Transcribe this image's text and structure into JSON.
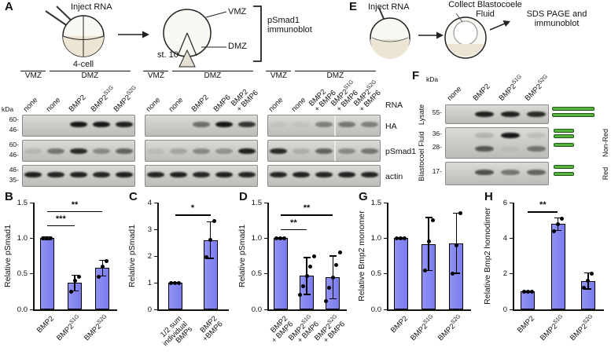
{
  "colors": {
    "bar_fill": "#8184ef",
    "band_color": "#0e0e0e",
    "green_fill": "#56b33c"
  },
  "panelA": {
    "label": "A",
    "inject_label": "Inject RNA",
    "four_cell_label": "4-cell",
    "stage_label": "st. 10",
    "vmz_label": "VMZ",
    "dmz_label": "DMZ",
    "immunoblot_label": "pSmad1\nimmunoblot"
  },
  "blotsA": {
    "kda_label": "kDa",
    "rna_label": "RNA",
    "row_labels": [
      "HA",
      "pSmad1",
      "actin"
    ],
    "markers": [
      [
        "60-",
        "46-"
      ],
      [
        "60-",
        "46-"
      ],
      [
        "46-",
        "35-"
      ]
    ],
    "groups": [
      {
        "vmz": "VMZ",
        "dmz": "DMZ",
        "lanes": [
          "none",
          "none",
          "BMP2",
          "BMP2^S1G",
          "BMP2^S2G"
        ],
        "bands": [
          [
            0,
            0,
            0.95,
            0.95,
            0.9
          ],
          [
            0.1,
            0.45,
            0.85,
            0.35,
            0.55
          ],
          [
            0.9,
            0.88,
            0.9,
            0.88,
            0.9
          ]
        ],
        "splice": false
      },
      {
        "vmz": "VMZ",
        "dmz": "DMZ",
        "lanes": [
          "none",
          "none",
          "BMP2",
          "BMP6",
          "BMP2\n+ BMP6"
        ],
        "bands": [
          [
            0,
            0,
            0.5,
            0.95,
            0.8
          ],
          [
            0.08,
            0.2,
            0.35,
            0.3,
            0.9
          ],
          [
            0.88,
            0.9,
            0.88,
            0.9,
            0.88
          ]
        ],
        "splice": false
      },
      {
        "vmz": "VMZ",
        "dmz": "DMZ",
        "lanes": [
          "none",
          "none",
          "BMP2\n+ BMP6",
          "BMP2^S1G\n+ BMP6",
          "BMP2^S2G\n+ BMP6"
        ],
        "bands": [
          [
            0.05,
            0.05,
            0.4,
            0.45,
            0.4
          ],
          [
            0.85,
            0.15,
            0.55,
            0.35,
            0.45
          ],
          [
            0.88,
            0.9,
            0.88,
            0.9,
            0.88
          ]
        ],
        "splice": true
      }
    ]
  },
  "panelE": {
    "label": "E",
    "inject_label": "Inject RNA",
    "collect_label": "Collect Blastocoele\nFluid",
    "sds_label": "SDS PAGE and\nimmunoblot"
  },
  "panelF": {
    "label": "F",
    "kda_label": "kDa",
    "lanes": [
      "none",
      "BMP2",
      "BMP2^S1G",
      "BMP2^S2G"
    ],
    "left_labels": [
      "Lysate",
      "Blastocoel Fluid"
    ],
    "right_labels": [
      "Non-Red",
      "Red"
    ],
    "rows": [
      {
        "markers": [
          "55-"
        ],
        "bands": [
          [
            0,
            0.9,
            0.9,
            0.85
          ]
        ]
      },
      {
        "markers": [
          "36-",
          "28-"
        ],
        "bands": [
          [
            0,
            0.15,
            0.95,
            0.1
          ],
          [
            0,
            0.6,
            0.05,
            0.45
          ]
        ]
      },
      {
        "markers": [
          "17-"
        ],
        "bands": [
          [
            0,
            0.65,
            0.45,
            0.55
          ]
        ]
      }
    ]
  },
  "chart_data": [
    {
      "id": "B",
      "type": "bar",
      "panel_label": "B",
      "ylabel": "Relative pSmad1",
      "ylim": [
        0,
        1.5
      ],
      "yticks": [
        "0.0",
        "0.5",
        "1.0",
        "1.5"
      ],
      "categories": [
        "BMP2",
        "BMP2^S1G",
        "BMP2^S2G"
      ],
      "values": [
        1.0,
        0.37,
        0.58
      ],
      "errors": [
        0.02,
        0.11,
        0.11
      ],
      "points": [
        [
          1.0,
          1.0,
          1.0
        ],
        [
          0.25,
          0.4,
          0.46
        ],
        [
          0.46,
          0.6,
          0.68
        ]
      ],
      "sig": [
        {
          "i": 0,
          "j": 1,
          "label": "***",
          "y": 1.18
        },
        {
          "i": 0,
          "j": 2,
          "label": "**",
          "y": 1.38
        }
      ]
    },
    {
      "id": "C",
      "type": "bar",
      "panel_label": "C",
      "ylabel": "Relative pSmad1",
      "ylim": [
        0,
        4
      ],
      "yticks": [
        "0",
        "1",
        "2",
        "3",
        "4"
      ],
      "categories": [
        "1/2 sum\nindividual\nBMPs",
        "BMP2\n+BMP6"
      ],
      "values": [
        1.0,
        2.6
      ],
      "errors": [
        0.02,
        0.68
      ],
      "points": [
        [
          1.0,
          1.0,
          1.0
        ],
        [
          1.95,
          2.6,
          3.3
        ]
      ],
      "sig": [
        {
          "i": 0,
          "j": 1,
          "label": "*",
          "y": 3.55
        }
      ]
    },
    {
      "id": "D",
      "type": "bar",
      "panel_label": "D",
      "ylabel": "Relative pSmad1",
      "ylim": [
        0,
        1.5
      ],
      "yticks": [
        "0.0",
        "0.5",
        "1.0",
        "1.5"
      ],
      "categories": [
        "BMP2\n+ BMP6",
        "BMP2^S1G\n+ BMP6",
        "BMP2^S2G\n+ BMP6"
      ],
      "values": [
        1.0,
        0.47,
        0.45
      ],
      "errors": [
        0.01,
        0.26,
        0.3
      ],
      "points": [
        [
          1.0,
          1.0,
          1.0
        ],
        [
          0.2,
          0.33,
          0.47,
          0.6,
          0.75
        ],
        [
          0.12,
          0.3,
          0.45,
          0.62,
          0.8
        ]
      ],
      "sig": [
        {
          "i": 0,
          "j": 1,
          "label": "**",
          "y": 1.13
        },
        {
          "i": 0,
          "j": 2,
          "label": "**",
          "y": 1.33
        }
      ]
    },
    {
      "id": "G",
      "type": "bar",
      "panel_label": "G",
      "ylabel": "Relative Bmp2 monomer",
      "ylim": [
        0,
        1.5
      ],
      "yticks": [
        "0.0",
        "0.5",
        "1.0",
        "1.5"
      ],
      "categories": [
        "BMP2",
        "BMP2^S1G",
        "BMP2^S2G"
      ],
      "values": [
        1.0,
        0.92,
        0.93
      ],
      "errors": [
        0.01,
        0.37,
        0.42
      ],
      "points": [
        [
          1.0,
          1.0,
          1.0
        ],
        [
          0.55,
          0.95,
          1.25
        ],
        [
          0.5,
          0.9,
          1.35
        ]
      ],
      "sig": []
    },
    {
      "id": "H",
      "type": "bar",
      "panel_label": "H",
      "ylabel": "Relative Bmp2 homodimer",
      "ylim": [
        0,
        6
      ],
      "yticks": [
        "0",
        "2",
        "4",
        "6"
      ],
      "categories": [
        "BMP2",
        "BMP2^S1G",
        "BMP2^S2G"
      ],
      "values": [
        1.0,
        4.8,
        1.6
      ],
      "errors": [
        0.03,
        0.35,
        0.45
      ],
      "points": [
        [
          1.0,
          1.0,
          1.0
        ],
        [
          4.4,
          4.8,
          5.1
        ],
        [
          1.2,
          1.6,
          2.0
        ]
      ],
      "sig": [
        {
          "i": 0,
          "j": 1,
          "label": "**",
          "y": 5.5
        }
      ]
    }
  ]
}
